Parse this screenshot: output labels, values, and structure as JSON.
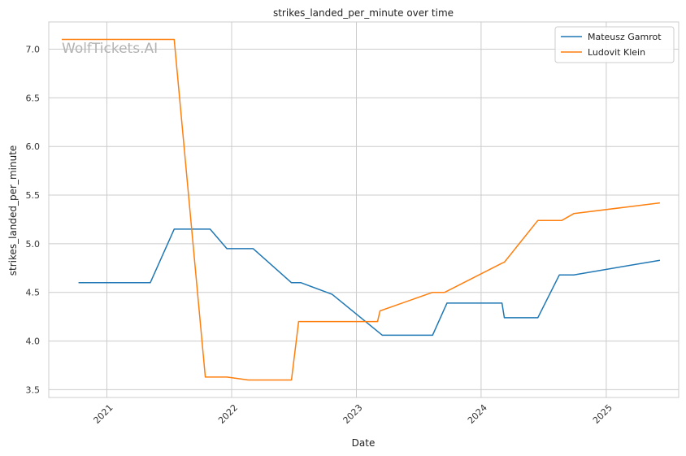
{
  "chart_data": {
    "type": "line",
    "title": "strikes_landed_per_minute over time",
    "xlabel": "Date",
    "ylabel": "strikes_landed_per_minute",
    "watermark": "WolfTickets.AI",
    "xlim": [
      "2020-07-15",
      "2025-08-01"
    ],
    "ylim": [
      3.42,
      7.28
    ],
    "x_ticks": [
      "2021-01-01",
      "2022-01-01",
      "2023-01-01",
      "2024-01-01",
      "2025-01-01"
    ],
    "x_tick_labels": [
      "2021",
      "2022",
      "2023",
      "2024",
      "2025"
    ],
    "y_ticks": [
      3.5,
      4.0,
      4.5,
      5.0,
      5.5,
      6.0,
      6.5,
      7.0
    ],
    "y_tick_labels": [
      "3.5",
      "4.0",
      "4.5",
      "5.0",
      "5.5",
      "6.0",
      "6.5",
      "7.0"
    ],
    "grid": true,
    "legend_position": "top-right",
    "series": [
      {
        "name": "Mateusz Gamrot",
        "color": "#1f77b4",
        "points": [
          [
            "2020-10-10",
            4.6
          ],
          [
            "2021-05-08",
            4.6
          ],
          [
            "2021-07-17",
            5.15
          ],
          [
            "2021-10-30",
            5.15
          ],
          [
            "2021-12-18",
            4.95
          ],
          [
            "2022-03-05",
            4.95
          ],
          [
            "2022-06-25",
            4.6
          ],
          [
            "2022-07-23",
            4.6
          ],
          [
            "2022-10-22",
            4.48
          ],
          [
            "2023-03-18",
            4.06
          ],
          [
            "2023-08-12",
            4.06
          ],
          [
            "2023-09-23",
            4.39
          ],
          [
            "2024-03-02",
            4.39
          ],
          [
            "2024-03-09",
            4.24
          ],
          [
            "2024-06-15",
            4.24
          ],
          [
            "2024-08-17",
            4.68
          ],
          [
            "2024-09-28",
            4.68
          ],
          [
            "2025-06-07",
            4.83
          ]
        ]
      },
      {
        "name": "Ludovit Klein",
        "color": "#ff7f0e",
        "points": [
          [
            "2020-08-22",
            7.1
          ],
          [
            "2021-07-17",
            7.1
          ],
          [
            "2021-10-16",
            3.63
          ],
          [
            "2021-12-18",
            3.63
          ],
          [
            "2022-02-19",
            3.6
          ],
          [
            "2022-06-25",
            3.6
          ],
          [
            "2022-07-16",
            4.2
          ],
          [
            "2023-03-04",
            4.2
          ],
          [
            "2023-03-11",
            4.31
          ],
          [
            "2023-08-12",
            4.5
          ],
          [
            "2023-09-16",
            4.5
          ],
          [
            "2024-03-02",
            4.8
          ],
          [
            "2024-03-09",
            4.81
          ],
          [
            "2024-06-15",
            5.24
          ],
          [
            "2024-08-24",
            5.24
          ],
          [
            "2024-09-28",
            5.31
          ],
          [
            "2025-06-07",
            5.42
          ]
        ]
      }
    ]
  }
}
